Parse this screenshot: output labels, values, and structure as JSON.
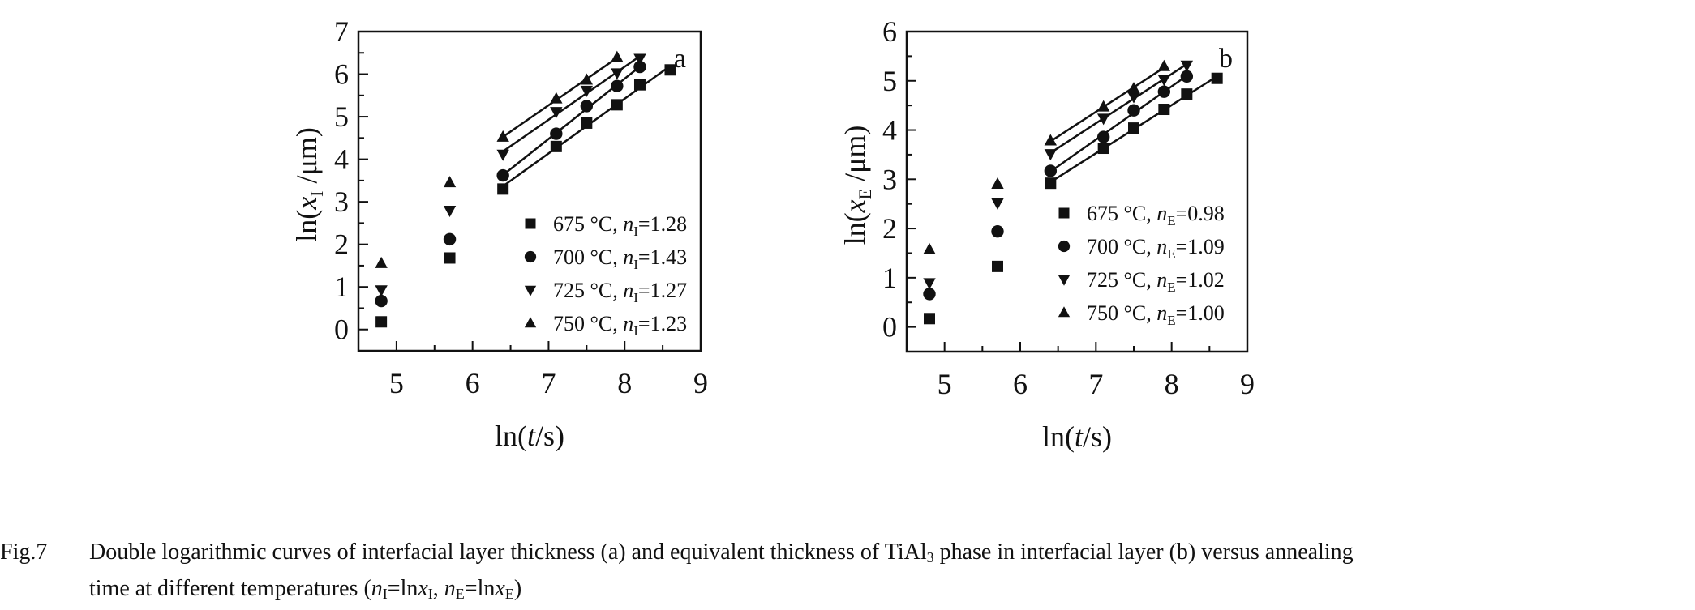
{
  "chart_data": [
    {
      "type": "scatter",
      "panel_label": "a",
      "xlabel": {
        "prefix": "ln(",
        "var": "t",
        "suffix": "/s)"
      },
      "ylabel": {
        "prefix": "ln(",
        "var": "x",
        "sub": "I",
        "suffix": " /μm)"
      },
      "xlim": [
        4.5,
        9
      ],
      "ylim": [
        -0.5,
        7
      ],
      "xticks": [
        5,
        6,
        7,
        8,
        9
      ],
      "yticks": [
        0,
        1,
        2,
        3,
        4,
        5,
        6,
        7
      ],
      "legend_position": "bottom-right",
      "series": [
        {
          "name": "675 °C, ",
          "nvar": "n",
          "nsub": "I",
          "nval": "=1.28",
          "marker": "square",
          "x": [
            4.8,
            5.7,
            6.4,
            7.1,
            7.5,
            7.9,
            8.2,
            8.6
          ],
          "y": [
            0.18,
            1.68,
            3.3,
            4.3,
            4.85,
            5.28,
            5.75,
            6.1
          ],
          "fit_from": 6.4
        },
        {
          "name": "700 °C, ",
          "nvar": "n",
          "nsub": "I",
          "nval": "=1.43",
          "marker": "circle",
          "x": [
            4.8,
            5.7,
            6.4,
            7.1,
            7.5,
            7.9,
            8.2
          ],
          "y": [
            0.67,
            2.12,
            3.62,
            4.6,
            5.25,
            5.72,
            6.17
          ],
          "fit_from": 6.4
        },
        {
          "name": "725 °C, ",
          "nvar": "n",
          "nsub": "I",
          "nval": "=1.27",
          "marker": "triangle-down",
          "x": [
            4.8,
            5.7,
            6.4,
            7.1,
            7.5,
            7.9,
            8.2
          ],
          "y": [
            0.93,
            2.8,
            4.12,
            5.12,
            5.62,
            6.03,
            6.37
          ],
          "fit_from": 6.4
        },
        {
          "name": "750 °C, ",
          "nvar": "n",
          "nsub": "I",
          "nval": "=1.23",
          "marker": "triangle-up",
          "x": [
            4.8,
            5.7,
            6.4,
            7.1,
            7.5,
            7.9
          ],
          "y": [
            1.55,
            3.45,
            4.52,
            5.42,
            5.86,
            6.39
          ],
          "fit_from": 6.4
        }
      ]
    },
    {
      "type": "scatter",
      "panel_label": "b",
      "xlabel": {
        "prefix": "ln(",
        "var": "t",
        "suffix": "/s)"
      },
      "ylabel": {
        "prefix": "ln(",
        "var": "x",
        "sub": "E",
        "suffix": " /μm)"
      },
      "xlim": [
        4.5,
        9
      ],
      "ylim": [
        -0.5,
        6
      ],
      "xticks": [
        5,
        6,
        7,
        8,
        9
      ],
      "yticks": [
        0,
        1,
        2,
        3,
        4,
        5,
        6
      ],
      "legend_position": "bottom-right",
      "series": [
        {
          "name": "675 °C, ",
          "nvar": "n",
          "nsub": "E",
          "nval": "=0.98",
          "marker": "square",
          "x": [
            4.8,
            5.7,
            6.4,
            7.1,
            7.5,
            7.9,
            8.2,
            8.6
          ],
          "y": [
            0.17,
            1.23,
            2.92,
            3.63,
            4.04,
            4.42,
            4.73,
            5.05
          ],
          "fit_from": 6.4
        },
        {
          "name": "700 °C, ",
          "nvar": "n",
          "nsub": "E",
          "nval": "=1.09",
          "marker": "circle",
          "x": [
            4.8,
            5.7,
            6.4,
            7.1,
            7.5,
            7.9,
            8.2
          ],
          "y": [
            0.67,
            1.94,
            3.17,
            3.86,
            4.4,
            4.78,
            5.09
          ],
          "fit_from": 6.4
        },
        {
          "name": "725 °C, ",
          "nvar": "n",
          "nsub": "E",
          "nval": "=1.02",
          "marker": "triangle-down",
          "x": [
            4.8,
            5.7,
            6.4,
            7.1,
            7.5,
            7.9,
            8.2
          ],
          "y": [
            0.9,
            2.52,
            3.52,
            4.24,
            4.68,
            5.03,
            5.32
          ],
          "fit_from": 6.4
        },
        {
          "name": "750 °C, ",
          "nvar": "n",
          "nsub": "E",
          "nval": "=1.00",
          "marker": "triangle-up",
          "x": [
            4.8,
            5.7,
            6.4,
            7.1,
            7.5,
            7.9
          ],
          "y": [
            1.57,
            2.9,
            3.78,
            4.47,
            4.84,
            5.29
          ],
          "fit_from": 6.4
        }
      ]
    }
  ],
  "caption": {
    "fig_label": "Fig.7",
    "line1_a": "Double logarithmic curves of interfacial layer thickness (a) and equivalent thickness of TiAl",
    "line1_sub": "3",
    "line1_b": " phase in interfacial layer (b) versus annealing",
    "line2_a": "time at different temperatures (",
    "n": "n",
    "subI": "I",
    "eq1": "=ln",
    "x": "x",
    "comma": ", ",
    "subE": "E",
    "close": ")"
  }
}
